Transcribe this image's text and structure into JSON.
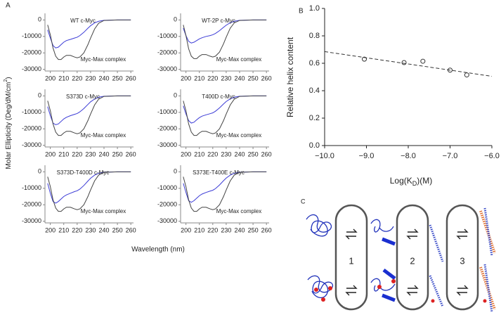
{
  "panel_a": {
    "label": "A",
    "y_label": [
      "Molar Ellipticity (Deg/dM/cm",
      "2",
      ")"
    ],
    "x_label": "Wavelength (nm)"
  },
  "chart_data": [
    {
      "type": "line",
      "x": [
        198,
        200,
        202,
        204,
        206,
        208,
        210,
        212,
        215,
        218,
        220,
        222,
        225,
        228,
        230,
        233,
        236,
        240,
        250,
        260
      ],
      "xlim": [
        196,
        262
      ],
      "xticks": [
        200,
        210,
        220,
        230,
        240,
        250,
        260
      ],
      "ylim": [
        -31000,
        4000
      ],
      "yticks": [
        0,
        -10000,
        -20000,
        -30000
      ],
      "series": [
        {
          "name": "WT c-Myc",
          "color": "#3b3bd6",
          "values": [
            -6000,
            -11000,
            -15500,
            -17000,
            -16500,
            -15000,
            -13500,
            -12500,
            -11800,
            -11000,
            -10500,
            -9500,
            -7500,
            -5000,
            -3500,
            -1800,
            -800,
            -200,
            0,
            0
          ]
        },
        {
          "name": "Myc-Max complex",
          "color": "#444444",
          "values": [
            -3000,
            -9000,
            -17000,
            -22000,
            -24000,
            -24000,
            -22500,
            -21500,
            -21500,
            -22500,
            -23000,
            -22500,
            -20000,
            -15000,
            -11000,
            -5500,
            -2000,
            -300,
            0,
            0
          ]
        }
      ]
    },
    {
      "type": "line",
      "x": [
        198,
        200,
        202,
        204,
        206,
        208,
        210,
        212,
        215,
        218,
        220,
        222,
        225,
        228,
        230,
        233,
        236,
        240,
        250,
        260
      ],
      "xlim": [
        196,
        262
      ],
      "xticks": [
        200,
        210,
        220,
        230,
        240,
        250,
        260
      ],
      "ylim": [
        -31000,
        4000
      ],
      "yticks": [
        0,
        -10000,
        -20000,
        -30000
      ],
      "series": [
        {
          "name": "WT-2P c-Myc",
          "color": "#3b3bd6",
          "values": [
            -5000,
            -9500,
            -13000,
            -14000,
            -13500,
            -12500,
            -11500,
            -10800,
            -10000,
            -9500,
            -9000,
            -8200,
            -6500,
            -4500,
            -3200,
            -1700,
            -800,
            -200,
            0,
            0
          ]
        },
        {
          "name": "Myc-Max complex",
          "color": "#444444",
          "values": [
            -3000,
            -9500,
            -17500,
            -22000,
            -23500,
            -23500,
            -22000,
            -21000,
            -21000,
            -22000,
            -22500,
            -22000,
            -19500,
            -14500,
            -10500,
            -5000,
            -1800,
            -300,
            0,
            0
          ]
        }
      ]
    },
    {
      "type": "line",
      "x": [
        198,
        200,
        202,
        204,
        206,
        208,
        210,
        212,
        215,
        218,
        220,
        222,
        225,
        228,
        230,
        233,
        236,
        240,
        250,
        260
      ],
      "xlim": [
        196,
        262
      ],
      "xticks": [
        200,
        210,
        220,
        230,
        240,
        250,
        260
      ],
      "ylim": [
        -31000,
        4000
      ],
      "yticks": [
        0,
        -10000,
        -20000,
        -30000
      ],
      "series": [
        {
          "name": "S373D c-Myc",
          "color": "#3b3bd6",
          "values": [
            -6500,
            -12000,
            -16500,
            -17500,
            -17000,
            -15500,
            -14000,
            -13000,
            -12000,
            -11200,
            -10700,
            -9700,
            -7700,
            -5200,
            -3600,
            -1900,
            -800,
            -200,
            0,
            0
          ]
        },
        {
          "name": "Myc-Max complex",
          "color": "#444444",
          "values": [
            -3000,
            -9000,
            -17000,
            -22000,
            -24000,
            -24000,
            -22500,
            -21500,
            -21500,
            -22500,
            -23000,
            -22500,
            -20000,
            -15000,
            -11000,
            -5500,
            -2000,
            -300,
            0,
            0
          ]
        }
      ]
    },
    {
      "type": "line",
      "x": [
        198,
        200,
        202,
        204,
        206,
        208,
        210,
        212,
        215,
        218,
        220,
        222,
        225,
        228,
        230,
        233,
        236,
        240,
        250,
        260
      ],
      "xlim": [
        196,
        262
      ],
      "xticks": [
        200,
        210,
        220,
        230,
        240,
        250,
        260
      ],
      "ylim": [
        -31000,
        4000
      ],
      "yticks": [
        0,
        -10000,
        -20000,
        -30000
      ],
      "series": [
        {
          "name": "T400D c-Myc",
          "color": "#3b3bd6",
          "values": [
            -6000,
            -11000,
            -15000,
            -16500,
            -16000,
            -14500,
            -13200,
            -12300,
            -11500,
            -10800,
            -10300,
            -9300,
            -7300,
            -4900,
            -3400,
            -1800,
            -800,
            -200,
            0,
            0
          ]
        },
        {
          "name": "Myc-Max complex",
          "color": "#444444",
          "values": [
            -3000,
            -9000,
            -17000,
            -22000,
            -24000,
            -24000,
            -22500,
            -21500,
            -21500,
            -22500,
            -23000,
            -22500,
            -20000,
            -15000,
            -11000,
            -5500,
            -2000,
            -300,
            0,
            0
          ]
        }
      ]
    },
    {
      "type": "line",
      "x": [
        198,
        200,
        202,
        204,
        206,
        208,
        210,
        212,
        215,
        218,
        220,
        222,
        225,
        228,
        230,
        233,
        236,
        240,
        250,
        260
      ],
      "xlim": [
        196,
        262
      ],
      "xticks": [
        200,
        210,
        220,
        230,
        240,
        250,
        260
      ],
      "ylim": [
        -31000,
        4000
      ],
      "yticks": [
        0,
        -10000,
        -20000,
        -30000
      ],
      "series": [
        {
          "name": "S373D-T400D c-Myc",
          "color": "#3b3bd6",
          "values": [
            -7000,
            -13000,
            -18000,
            -19000,
            -18000,
            -16500,
            -15000,
            -14000,
            -13000,
            -12000,
            -11500,
            -10500,
            -8300,
            -5600,
            -3900,
            -2000,
            -900,
            -200,
            0,
            0
          ]
        },
        {
          "name": "Myc-Max complex",
          "color": "#444444",
          "values": [
            -3000,
            -9000,
            -17000,
            -22000,
            -24000,
            -24000,
            -22500,
            -21500,
            -21500,
            -22500,
            -23000,
            -22500,
            -20000,
            -15000,
            -11000,
            -5500,
            -2000,
            -300,
            0,
            0
          ]
        }
      ]
    },
    {
      "type": "line",
      "x": [
        198,
        200,
        202,
        204,
        206,
        208,
        210,
        212,
        215,
        218,
        220,
        222,
        225,
        228,
        230,
        233,
        236,
        240,
        250,
        260
      ],
      "xlim": [
        196,
        262
      ],
      "xticks": [
        200,
        210,
        220,
        230,
        240,
        250,
        260
      ],
      "ylim": [
        -31000,
        4000
      ],
      "yticks": [
        0,
        -10000,
        -20000,
        -30000
      ],
      "series": [
        {
          "name": "S373E-T400E c-Myc",
          "color": "#3b3bd6",
          "values": [
            -7000,
            -12500,
            -17500,
            -18500,
            -17500,
            -16000,
            -14500,
            -13500,
            -12500,
            -11700,
            -11200,
            -10200,
            -8000,
            -5400,
            -3800,
            -2000,
            -900,
            -200,
            0,
            0
          ]
        },
        {
          "name": "Myc-Max complex",
          "color": "#444444",
          "values": [
            -3000,
            -9000,
            -17000,
            -22000,
            -24000,
            -24000,
            -22500,
            -21500,
            -21500,
            -22500,
            -23000,
            -22500,
            -20000,
            -15000,
            -11000,
            -5500,
            -2000,
            -300,
            0,
            0
          ]
        }
      ]
    },
    {
      "type": "scatter",
      "panel_label": "B",
      "y_label": "Relative helix content",
      "x_label": [
        "Log(K",
        "D",
        ")(M)"
      ],
      "xlim": [
        -10,
        -6
      ],
      "ylim": [
        0,
        1
      ],
      "xticks": [
        {
          "value": -10,
          "label": "−10.0"
        },
        {
          "value": -9,
          "label": "−9.0"
        },
        {
          "value": -8,
          "label": "−8.0"
        },
        {
          "value": -7,
          "label": "−7.0"
        },
        {
          "value": -6,
          "label": "−6.0"
        }
      ],
      "yticks": [
        {
          "value": 0,
          "label": "0.0"
        },
        {
          "value": 0.2,
          "label": "0.2"
        },
        {
          "value": 0.4,
          "label": "0.4"
        },
        {
          "value": 0.6,
          "label": "0.6"
        },
        {
          "value": 0.8,
          "label": "0.8"
        },
        {
          "value": 1,
          "label": "1.0"
        }
      ],
      "series": [
        {
          "kind": "markers",
          "color": "#333333",
          "x": [
            -9.05,
            -8.1,
            -7.65,
            -7.0,
            -6.6
          ],
          "values": [
            0.63,
            0.605,
            0.615,
            0.55,
            0.515
          ]
        },
        {
          "kind": "dashed",
          "color": "#333333",
          "x": [
            -10,
            -6
          ],
          "values": [
            0.685,
            0.505
          ]
        }
      ]
    }
  ],
  "panel_c": {
    "label": "C",
    "steps": [
      "1",
      "2",
      "3"
    ]
  }
}
